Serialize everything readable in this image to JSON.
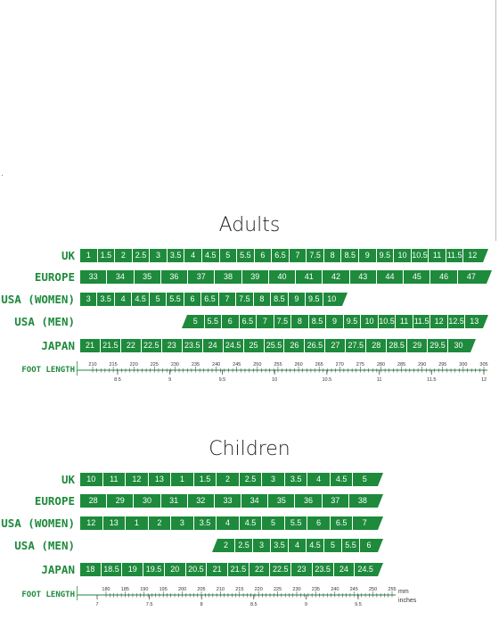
{
  "adults": {
    "title": "Adults",
    "row_labels": [
      "UK",
      "EUROPE",
      "USA (WOMEN)",
      "USA (MEN)",
      "JAPAN"
    ],
    "uk": [
      "1",
      "1.5",
      "2",
      "2.5",
      "3",
      "3.5",
      "4",
      "4.5",
      "5",
      "5.5",
      "6",
      "6.5",
      "7",
      "7.5",
      "8",
      "8.5",
      "9",
      "9.5",
      "10",
      "10.5",
      "11",
      "11.5",
      "12"
    ],
    "europe": [
      "33",
      "34",
      "35",
      "36",
      "37",
      "38",
      "39",
      "40",
      "41",
      "42",
      "43",
      "44",
      "45",
      "46",
      "47"
    ],
    "usa_women": [
      "3",
      "3.5",
      "4",
      "4.5",
      "5",
      "5.5",
      "6",
      "6.5",
      "7",
      "7.5",
      "8",
      "8.5",
      "9",
      "9.5",
      "10"
    ],
    "usa_men": [
      "5",
      "5.5",
      "6",
      "6.5",
      "7",
      "7.5",
      "8",
      "8.5",
      "9",
      "9.5",
      "10",
      "10.5",
      "11",
      "11.5",
      "12",
      "12.5",
      "13"
    ],
    "japan": [
      "21",
      "21.5",
      "22",
      "22.5",
      "23",
      "23.5",
      "24",
      "24.5",
      "25",
      "25.5",
      "26",
      "26.5",
      "27",
      "27.5",
      "28",
      "28.5",
      "29",
      "29.5",
      "30"
    ],
    "foot_length_label": "FOOT LENGTH",
    "mm_ticks": [
      "210",
      "215",
      "220",
      "225",
      "230",
      "235",
      "240",
      "245",
      "250",
      "255",
      "260",
      "265",
      "270",
      "275",
      "280",
      "285",
      "290",
      "295",
      "300",
      "305"
    ],
    "inch_ticks": [
      "8.5",
      "9",
      "9.5",
      "10",
      "10.5",
      "11",
      "11.5",
      "12"
    ]
  },
  "children": {
    "title": "Children",
    "row_labels": [
      "UK",
      "EUROPE",
      "USA (WOMEN)",
      "USA (MEN)",
      "JAPAN"
    ],
    "uk": [
      "10",
      "11",
      "12",
      "13",
      "1",
      "1.5",
      "2",
      "2.5",
      "3",
      "3.5",
      "4",
      "4.5",
      "5"
    ],
    "europe": [
      "28",
      "29",
      "30",
      "31",
      "32",
      "33",
      "34",
      "35",
      "36",
      "37",
      "38"
    ],
    "usa_women": [
      "12",
      "13",
      "1",
      "2",
      "3",
      "3.5",
      "4",
      "4.5",
      "5",
      "5.5",
      "6",
      "6.5",
      "7"
    ],
    "usa_men": [
      "2",
      "2.5",
      "3",
      "3.5",
      "4",
      "4.5",
      "5",
      "5.5",
      "6"
    ],
    "japan": [
      "18",
      "18.5",
      "19",
      "19.5",
      "20",
      "20.5",
      "21",
      "21.5",
      "22",
      "22.5",
      "23",
      "23.5",
      "24",
      "24.5"
    ],
    "foot_length_label": "FOOT LENGTH",
    "mm_ticks": [
      "180",
      "185",
      "190",
      "195",
      "200",
      "205",
      "210",
      "215",
      "220",
      "225",
      "230",
      "235",
      "240",
      "245",
      "250",
      "255"
    ],
    "inch_ticks": [
      "7",
      "7.5",
      "8",
      "8.5",
      "9",
      "9.5"
    ],
    "mm_unit": "mm",
    "inch_unit": "inches"
  },
  "colors": {
    "bar": "#1e8a3c",
    "label": "#1e8a3c"
  }
}
